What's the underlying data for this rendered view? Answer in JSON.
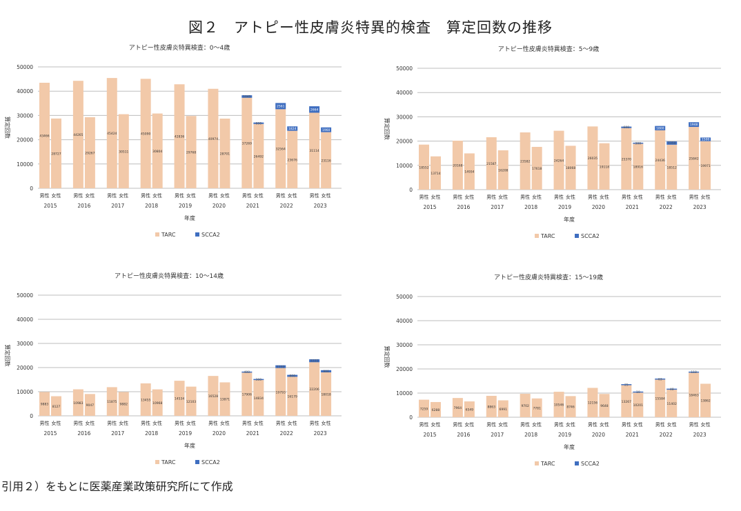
{
  "title": "図２　アトピー性皮膚炎特異的検査　算定回数の推移",
  "footer": "引用２）をもとに医薬産業政策研究所にて作成",
  "colors": {
    "TARC": "#f2c9a9",
    "SCCA2": "#3f6ec0",
    "grid": "#bdbdbd"
  },
  "chart_data": [
    {
      "type": "bar",
      "stacked": true,
      "title": "アトピー性皮膚炎特異検査：0～4歳",
      "xlabel": "年度",
      "ylabel": "算定回数",
      "ylim": [
        0,
        50000
      ],
      "yticks": [
        0,
        10000,
        20000,
        30000,
        40000,
        50000
      ],
      "categories": [
        "2015",
        "2016",
        "2017",
        "2018",
        "2019",
        "2020",
        "2021",
        "2022",
        "2023"
      ],
      "subcategories": [
        "男性",
        "女性"
      ],
      "legend": "bottom",
      "series": [
        {
          "name": "TARC",
          "values": [
            [
              43466,
              28727
            ],
            [
              44265,
              29267
            ],
            [
              45424,
              30511
            ],
            [
              45090,
              30804
            ],
            [
              42836,
              29768
            ],
            [
              40974,
              28701
            ],
            [
              37269,
              26492
            ],
            [
              32564,
              23676
            ],
            [
              31114,
              23116
            ]
          ]
        },
        {
          "name": "SCCA2",
          "values": [
            [
              0,
              0
            ],
            [
              0,
              0
            ],
            [
              0,
              0
            ],
            [
              0,
              0
            ],
            [
              0,
              0
            ],
            [
              0,
              0
            ],
            [
              1045,
              600
            ],
            [
              2561,
              1824
            ],
            [
              2664,
              1960
            ]
          ]
        }
      ]
    },
    {
      "type": "bar",
      "stacked": true,
      "title": "アトピー性皮膚炎特異検査：5～9歳",
      "xlabel": "年度",
      "ylabel": "算定回数",
      "ylim": [
        0,
        50000
      ],
      "yticks": [
        0,
        10000,
        20000,
        30000,
        40000,
        50000
      ],
      "categories": [
        "2015",
        "2016",
        "2017",
        "2018",
        "2019",
        "2020",
        "2021",
        "2022",
        "2023"
      ],
      "subcategories": [
        "男性",
        "女性"
      ],
      "legend": "bottom",
      "series": [
        {
          "name": "TARC",
          "values": [
            [
              18552,
              13714
            ],
            [
              20168,
              14934
            ],
            [
              21587,
              16208
            ],
            [
              23582,
              17618
            ],
            [
              24264,
              18068
            ],
            [
              26035,
              19118
            ],
            [
              25370,
              18916
            ],
            [
              24436,
              18512
            ],
            [
              25842,
              19971
            ]
          ]
        },
        {
          "name": "SCCA2",
          "values": [
            [
              0,
              0
            ],
            [
              0,
              0
            ],
            [
              0,
              0
            ],
            [
              0,
              0
            ],
            [
              0,
              0
            ],
            [
              0,
              0
            ],
            [
              600,
              300
            ],
            [
              1800,
              1350
            ],
            [
              1948,
              1500
            ]
          ]
        }
      ]
    },
    {
      "type": "bar",
      "stacked": true,
      "title": "アトピー性皮膚炎特異検査：10～14歳",
      "xlabel": "年度",
      "ylabel": "算定回数",
      "ylim": [
        0,
        50000
      ],
      "yticks": [
        0,
        10000,
        20000,
        30000,
        40000,
        50000
      ],
      "categories": [
        "2015",
        "2016",
        "2017",
        "2018",
        "2019",
        "2020",
        "2021",
        "2022",
        "2023"
      ],
      "subcategories": [
        "男性",
        "女性"
      ],
      "legend": "bottom",
      "series": [
        {
          "name": "TARC",
          "values": [
            [
              9883,
              8127
            ],
            [
              10983,
              9047
            ],
            [
              11875,
              9882
            ],
            [
              13455,
              10968
            ],
            [
              14534,
              12103
            ],
            [
              16528,
              13871
            ],
            [
              17906,
              14834
            ],
            [
              19793,
              16179
            ],
            [
              22206,
              18018
            ]
          ]
        },
        {
          "name": "SCCA2",
          "values": [
            [
              0,
              0
            ],
            [
              0,
              0
            ],
            [
              0,
              0
            ],
            [
              0,
              0
            ],
            [
              0,
              0
            ],
            [
              0,
              0
            ],
            [
              400,
              300
            ],
            [
              1152,
              800
            ],
            [
              1222,
              900
            ]
          ]
        }
      ]
    },
    {
      "type": "bar",
      "stacked": true,
      "title": "アトピー性皮膚炎特異検査：15～19歳",
      "xlabel": "年度",
      "ylabel": "算定回数",
      "ylim": [
        0,
        50000
      ],
      "yticks": [
        0,
        10000,
        20000,
        30000,
        40000,
        50000
      ],
      "categories": [
        "2015",
        "2016",
        "2017",
        "2018",
        "2019",
        "2020",
        "2021",
        "2022",
        "2023"
      ],
      "subcategories": [
        "男性",
        "女性"
      ],
      "legend": "bottom",
      "series": [
        {
          "name": "TARC",
          "values": [
            [
              7259,
              6288
            ],
            [
              7964,
              6549
            ],
            [
              8863,
              6991
            ],
            [
              9702,
              7781
            ],
            [
              10546,
              8746
            ],
            [
              12156,
              9648
            ],
            [
              13267,
              10201
            ],
            [
              15584,
              11402
            ],
            [
              18463,
              13862
            ]
          ]
        },
        {
          "name": "SCCA2",
          "values": [
            [
              0,
              0
            ],
            [
              0,
              0
            ],
            [
              0,
              0
            ],
            [
              0,
              0
            ],
            [
              0,
              0
            ],
            [
              0,
              0
            ],
            [
              25,
              10
            ],
            [
              63,
              48
            ],
            [
              118,
              0
            ]
          ]
        }
      ]
    }
  ]
}
